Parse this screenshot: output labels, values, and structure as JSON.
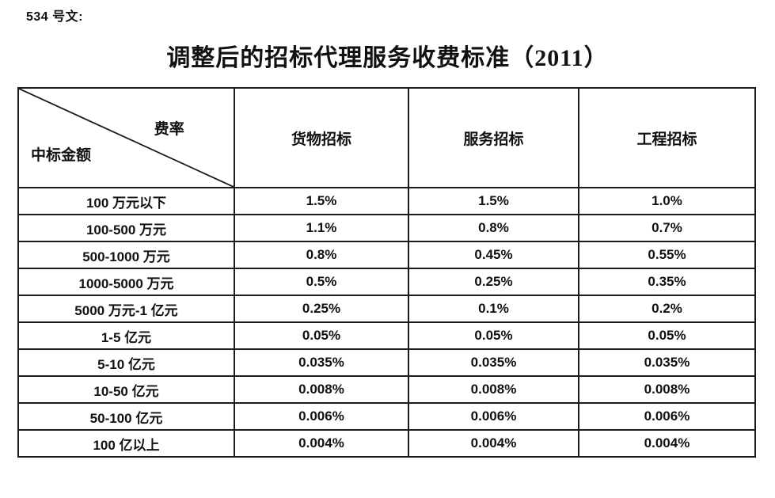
{
  "doc": {
    "number": "534 号文:",
    "title": "调整后的招标代理服务收费标准（2011）"
  },
  "colors": {
    "ink": "#111111",
    "border": "#1a1a1a",
    "background": "#ffffff"
  },
  "table": {
    "corner": {
      "top_right": "费率",
      "bottom_left": "中标金额"
    },
    "columns": [
      "货物招标",
      "服务招标",
      "工程招标"
    ],
    "rows": [
      {
        "amount": "100 万元以下",
        "values": [
          "1.5%",
          "1.5%",
          "1.0%"
        ]
      },
      {
        "amount": "100-500 万元",
        "values": [
          "1.1%",
          "0.8%",
          "0.7%"
        ]
      },
      {
        "amount": "500-1000 万元",
        "values": [
          "0.8%",
          "0.45%",
          "0.55%"
        ]
      },
      {
        "amount": "1000-5000 万元",
        "values": [
          "0.5%",
          "0.25%",
          "0.35%"
        ]
      },
      {
        "amount": "5000 万元-1 亿元",
        "values": [
          "0.25%",
          "0.1%",
          "0.2%"
        ]
      },
      {
        "amount": "1-5 亿元",
        "values": [
          "0.05%",
          "0.05%",
          "0.05%"
        ]
      },
      {
        "amount": "5-10 亿元",
        "values": [
          "0.035%",
          "0.035%",
          "0.035%"
        ]
      },
      {
        "amount": "10-50 亿元",
        "values": [
          "0.008%",
          "0.008%",
          "0.008%"
        ]
      },
      {
        "amount": "50-100 亿元",
        "values": [
          "0.006%",
          "0.006%",
          "0.006%"
        ]
      },
      {
        "amount": "100 亿以上",
        "values": [
          "0.004%",
          "0.004%",
          "0.004%"
        ]
      }
    ]
  }
}
